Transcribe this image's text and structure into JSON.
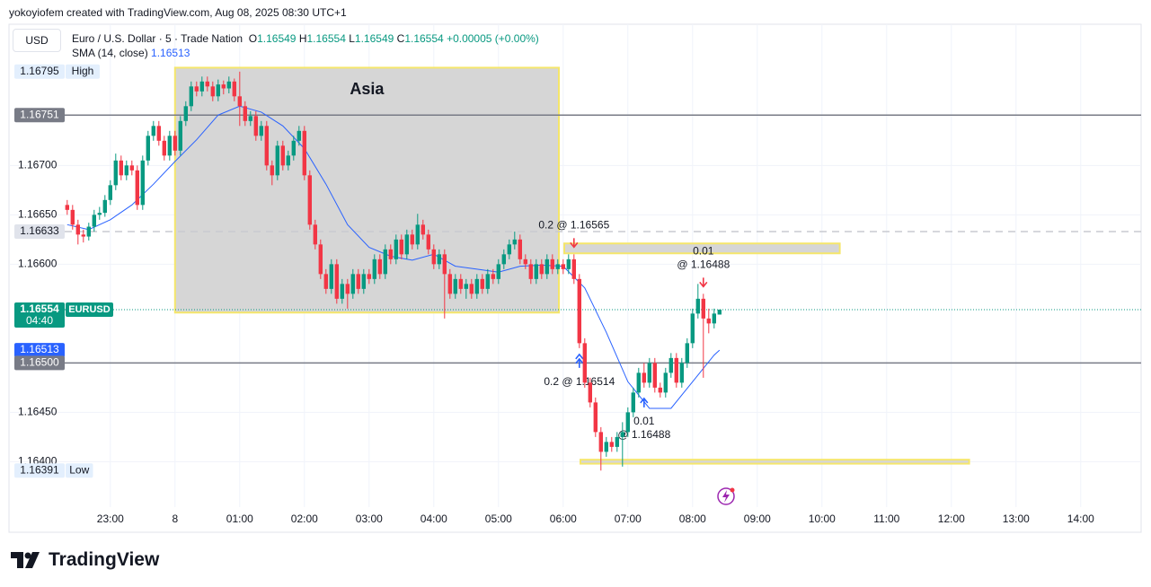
{
  "header": {
    "attribution": "yokoyiofem created with TradingView.com, Aug 08, 2025 08:30 UTC+1",
    "currency": "USD",
    "symbol": "Euro / U.S. Dollar · 5 · Trade Nation",
    "ohlc": [
      {
        "label": "O",
        "value": "1.16549"
      },
      {
        "label": "H",
        "value": "1.16554"
      },
      {
        "label": "L",
        "value": "1.16549"
      },
      {
        "label": "C",
        "value": "1.16554"
      }
    ],
    "change": "+0.00005 (+0.00%)",
    "indicator": "SMA (14, close)",
    "indicator_value": "1.16513"
  },
  "chart_data": {
    "type": "candlestick",
    "up_color": "#089981",
    "down_color": "#f23645",
    "grid": true,
    "xlim": [
      -10.8,
      199.2
    ],
    "ylim": [
      1.16354,
      1.16843
    ],
    "xticks": [
      {
        "value": 8,
        "label": "23:00"
      },
      {
        "value": 20,
        "label": "8"
      },
      {
        "value": 32,
        "label": "01:00"
      },
      {
        "value": 44,
        "label": "02:00"
      },
      {
        "value": 56,
        "label": "03:00"
      },
      {
        "value": 68,
        "label": "04:00"
      },
      {
        "value": 80,
        "label": "05:00"
      },
      {
        "value": 92,
        "label": "06:00"
      },
      {
        "value": 104,
        "label": "07:00"
      },
      {
        "value": 116,
        "label": "08:00"
      },
      {
        "value": 128,
        "label": "09:00"
      },
      {
        "value": 140,
        "label": "10:00"
      },
      {
        "value": 152,
        "label": "11:00"
      },
      {
        "value": 164,
        "label": "12:00"
      },
      {
        "value": 176,
        "label": "13:00"
      },
      {
        "value": 188,
        "label": "14:00"
      }
    ],
    "yticks": [
      {
        "value": 1.164,
        "label": "1.16400"
      },
      {
        "value": 1.1645,
        "label": "1.16450"
      },
      {
        "value": 1.166,
        "label": "1.16600"
      },
      {
        "value": 1.1665,
        "label": "1.16650"
      },
      {
        "value": 1.167,
        "label": "1.16700"
      }
    ],
    "candles": [
      [
        1.1666,
        1.16665,
        1.1665,
        1.16655
      ],
      [
        1.16655,
        1.1666,
        1.16635,
        1.1664
      ],
      [
        1.1664,
        1.16645,
        1.1662,
        1.1663
      ],
      [
        1.1663,
        1.16635,
        1.16622,
        1.16628
      ],
      [
        1.16628,
        1.16642,
        1.16624,
        1.16638
      ],
      [
        1.16638,
        1.16655,
        1.16633,
        1.1665
      ],
      [
        1.1665,
        1.16658,
        1.16645,
        1.16652
      ],
      [
        1.16652,
        1.1667,
        1.16648,
        1.16665
      ],
      [
        1.16665,
        1.16685,
        1.1666,
        1.1668
      ],
      [
        1.1668,
        1.16712,
        1.16675,
        1.16705
      ],
      [
        1.16705,
        1.1671,
        1.16685,
        1.1669
      ],
      [
        1.1669,
        1.16705,
        1.16685,
        1.167
      ],
      [
        1.167,
        1.16705,
        1.1669,
        1.16695
      ],
      [
        1.16695,
        1.167,
        1.16655,
        1.1666
      ],
      [
        1.1666,
        1.1671,
        1.16655,
        1.16705
      ],
      [
        1.16705,
        1.16735,
        1.167,
        1.1673
      ],
      [
        1.1673,
        1.16745,
        1.16725,
        1.1674
      ],
      [
        1.1674,
        1.16745,
        1.1672,
        1.16725
      ],
      [
        1.16725,
        1.1673,
        1.16705,
        1.1671
      ],
      [
        1.1671,
        1.16735,
        1.16705,
        1.1673
      ],
      [
        1.1673,
        1.16735,
        1.1671,
        1.16715
      ],
      [
        1.16715,
        1.1675,
        1.1671,
        1.16745
      ],
      [
        1.16745,
        1.16765,
        1.1674,
        1.1676
      ],
      [
        1.1676,
        1.16785,
        1.16755,
        1.1678
      ],
      [
        1.1678,
        1.16785,
        1.1677,
        1.16775
      ],
      [
        1.16775,
        1.1679,
        1.1677,
        1.16785
      ],
      [
        1.16785,
        1.1679,
        1.16775,
        1.1678
      ],
      [
        1.1678,
        1.16785,
        1.16765,
        1.1677
      ],
      [
        1.1677,
        1.16787,
        1.16765,
        1.16782
      ],
      [
        1.16782,
        1.16786,
        1.16772,
        1.16778
      ],
      [
        1.16778,
        1.1679,
        1.16773,
        1.16785
      ],
      [
        1.16785,
        1.16788,
        1.16765,
        1.1677
      ],
      [
        1.1677,
        1.16795,
        1.1674,
        1.1676
      ],
      [
        1.1676,
        1.16765,
        1.1674,
        1.16745
      ],
      [
        1.16745,
        1.16755,
        1.1674,
        1.1675
      ],
      [
        1.1675,
        1.16755,
        1.16725,
        1.1673
      ],
      [
        1.1673,
        1.16745,
        1.16725,
        1.1674
      ],
      [
        1.1674,
        1.16745,
        1.16695,
        1.167
      ],
      [
        1.167,
        1.16705,
        1.1668,
        1.1669
      ],
      [
        1.1669,
        1.16725,
        1.16685,
        1.1672
      ],
      [
        1.1672,
        1.16725,
        1.16695,
        1.167
      ],
      [
        1.167,
        1.16715,
        1.16695,
        1.1671
      ],
      [
        1.1671,
        1.1673,
        1.16705,
        1.16725
      ],
      [
        1.16725,
        1.1674,
        1.1672,
        1.16735
      ],
      [
        1.16735,
        1.1674,
        1.16685,
        1.1669
      ],
      [
        1.1669,
        1.16695,
        1.16635,
        1.1664
      ],
      [
        1.1664,
        1.16645,
        1.16615,
        1.1662
      ],
      [
        1.1662,
        1.16625,
        1.16585,
        1.1659
      ],
      [
        1.1659,
        1.16595,
        1.1657,
        1.16575
      ],
      [
        1.16575,
        1.16605,
        1.1657,
        1.166
      ],
      [
        1.166,
        1.16605,
        1.1656,
        1.16565
      ],
      [
        1.16565,
        1.16585,
        1.1656,
        1.1658
      ],
      [
        1.1658,
        1.16585,
        1.16555,
        1.1657
      ],
      [
        1.1657,
        1.16595,
        1.16565,
        1.1659
      ],
      [
        1.1659,
        1.16595,
        1.1657,
        1.16575
      ],
      [
        1.16575,
        1.16595,
        1.1657,
        1.1659
      ],
      [
        1.1659,
        1.16595,
        1.1658,
        1.16585
      ],
      [
        1.16585,
        1.1661,
        1.1658,
        1.16605
      ],
      [
        1.16605,
        1.1661,
        1.16585,
        1.1659
      ],
      [
        1.1659,
        1.1662,
        1.16585,
        1.16615
      ],
      [
        1.16615,
        1.1662,
        1.166,
        1.16605
      ],
      [
        1.16605,
        1.1663,
        1.166,
        1.16625
      ],
      [
        1.16625,
        1.1663,
        1.16605,
        1.1661
      ],
      [
        1.1661,
        1.16635,
        1.16605,
        1.1663
      ],
      [
        1.1663,
        1.16635,
        1.16615,
        1.1662
      ],
      [
        1.1662,
        1.16651,
        1.16615,
        1.1664
      ],
      [
        1.1664,
        1.16645,
        1.16625,
        1.1663
      ],
      [
        1.1663,
        1.16635,
        1.1661,
        1.16615
      ],
      [
        1.16615,
        1.1662,
        1.16595,
        1.166
      ],
      [
        1.166,
        1.16615,
        1.16595,
        1.1661
      ],
      [
        1.1661,
        1.16615,
        1.16545,
        1.1659
      ],
      [
        1.1659,
        1.16595,
        1.16565,
        1.1657
      ],
      [
        1.1657,
        1.1659,
        1.16565,
        1.16585
      ],
      [
        1.16585,
        1.1659,
        1.1657,
        1.16575
      ],
      [
        1.16575,
        1.16585,
        1.16565,
        1.1658
      ],
      [
        1.1658,
        1.16585,
        1.16565,
        1.1657
      ],
      [
        1.1657,
        1.1659,
        1.16565,
        1.16585
      ],
      [
        1.16585,
        1.1659,
        1.1657,
        1.16575
      ],
      [
        1.16575,
        1.16595,
        1.1657,
        1.1659
      ],
      [
        1.1659,
        1.16595,
        1.1658,
        1.16585
      ],
      [
        1.16585,
        1.16605,
        1.1658,
        1.166
      ],
      [
        1.166,
        1.16615,
        1.16595,
        1.1661
      ],
      [
        1.1661,
        1.16625,
        1.16605,
        1.1662
      ],
      [
        1.1662,
        1.16633,
        1.16615,
        1.16625
      ],
      [
        1.16625,
        1.1663,
        1.166,
        1.16605
      ],
      [
        1.16605,
        1.1661,
        1.16595,
        1.166
      ],
      [
        1.166,
        1.16605,
        1.1658,
        1.16585
      ],
      [
        1.16585,
        1.16605,
        1.1658,
        1.166
      ],
      [
        1.166,
        1.16605,
        1.16585,
        1.1659
      ],
      [
        1.1659,
        1.1661,
        1.16585,
        1.16605
      ],
      [
        1.16605,
        1.1661,
        1.1659,
        1.16595
      ],
      [
        1.16595,
        1.16605,
        1.1659,
        1.166
      ],
      [
        1.166,
        1.16605,
        1.1659,
        1.16595
      ],
      [
        1.16595,
        1.1661,
        1.1659,
        1.16605
      ],
      [
        1.16605,
        1.1661,
        1.1658,
        1.16585
      ],
      [
        1.16585,
        1.1659,
        1.16515,
        1.1652
      ],
      [
        1.1652,
        1.16525,
        1.16475,
        1.1648
      ],
      [
        1.1648,
        1.16485,
        1.16455,
        1.1646
      ],
      [
        1.1646,
        1.16465,
        1.16425,
        1.1643
      ],
      [
        1.1643,
        1.16435,
        1.16391,
        1.1641
      ],
      [
        1.1641,
        1.16425,
        1.16405,
        1.1642
      ],
      [
        1.1642,
        1.16425,
        1.1641,
        1.16415
      ],
      [
        1.16415,
        1.1643,
        1.1641,
        1.16425
      ],
      [
        1.16425,
        1.1644,
        1.16395,
        1.1643
      ],
      [
        1.1643,
        1.16455,
        1.16425,
        1.1645
      ],
      [
        1.1645,
        1.16475,
        1.16445,
        1.1647
      ],
      [
        1.1647,
        1.16495,
        1.16465,
        1.1649
      ],
      [
        1.1649,
        1.165,
        1.16475,
        1.1648
      ],
      [
        1.1648,
        1.16505,
        1.16475,
        1.165
      ],
      [
        1.165,
        1.16505,
        1.1647,
        1.16475
      ],
      [
        1.16475,
        1.1648,
        1.16465,
        1.1647
      ],
      [
        1.1647,
        1.16495,
        1.16465,
        1.1649
      ],
      [
        1.1649,
        1.1651,
        1.16485,
        1.16505
      ],
      [
        1.16505,
        1.1651,
        1.16475,
        1.1648
      ],
      [
        1.1648,
        1.16505,
        1.16475,
        1.165
      ],
      [
        1.165,
        1.16525,
        1.16495,
        1.1652
      ],
      [
        1.1652,
        1.16555,
        1.16515,
        1.1655
      ],
      [
        1.1655,
        1.1658,
        1.16545,
        1.16565
      ],
      [
        1.16565,
        1.1657,
        1.16485,
        1.16545
      ],
      [
        1.16545,
        1.16555,
        1.1653,
        1.1654
      ],
      [
        1.1654,
        1.16555,
        1.16535,
        1.1655
      ],
      [
        1.16549,
        1.16554,
        1.16549,
        1.16554
      ]
    ],
    "sma": {
      "color": "#2962ff",
      "x": [
        0,
        4,
        8,
        12,
        16,
        20,
        24,
        28,
        32,
        36,
        40,
        44,
        48,
        52,
        56,
        60,
        64,
        68,
        72,
        76,
        80,
        84,
        88,
        92,
        96,
        100,
        104,
        108,
        112,
        116,
        120,
        121
      ],
      "values": [
        1.1664,
        1.16635,
        1.16645,
        1.1666,
        1.16681,
        1.16704,
        1.16726,
        1.16751,
        1.1676,
        1.16754,
        1.1674,
        1.16717,
        1.16681,
        1.1664,
        1.16617,
        1.16608,
        1.16604,
        1.1661,
        1.16598,
        1.16595,
        1.16592,
        1.16598,
        1.16599,
        1.16598,
        1.16576,
        1.16531,
        1.16481,
        1.16454,
        1.16454,
        1.16481,
        1.16508,
        1.16513
      ]
    },
    "levels": [
      {
        "value": 1.16795,
        "label": "1.16795",
        "tag": "High",
        "line": "none",
        "bg": "#e3effd",
        "fg": "#131722"
      },
      {
        "value": 1.16751,
        "label": "1.16751",
        "line": "solid",
        "bg": "#787b86",
        "fg": "#ffffff"
      },
      {
        "value": 1.16633,
        "label": "1.16633",
        "line": "dashed",
        "bg": "#e0e3eb",
        "fg": "#131722"
      },
      {
        "value": 1.16554,
        "label": "1.16554",
        "tag": "EURUSD",
        "sub": "04:40",
        "line": "dotted",
        "bg": "#089981",
        "fg": "#ffffff"
      },
      {
        "value": 1.16513,
        "label": "1.16513",
        "line": "none",
        "bg": "#2962ff",
        "fg": "#ffffff"
      },
      {
        "value": 1.165,
        "label": "1.16500",
        "line": "solid",
        "bg": "#787b86",
        "fg": "#ffffff"
      },
      {
        "value": 1.16391,
        "label": "1.16391",
        "tag": "Low",
        "line": "none",
        "bg": "#e3effd",
        "fg": "#131722"
      }
    ],
    "drawings": [
      {
        "x0": 20,
        "x1": 91.2,
        "y0": 1.16551,
        "y1": 1.16799,
        "fill": "#d6d6d6",
        "border": "#f5e66b",
        "label": "Asia"
      },
      {
        "x0": 92.2,
        "x1": 143.3,
        "y0": 1.16611,
        "y1": 1.16621,
        "fill": "#d6d6d6",
        "border": "#f5e66b"
      },
      {
        "x0": 95.2,
        "x1": 167.3,
        "y0": 1.16398,
        "y1": 1.16402,
        "fill": "#d6d6d6",
        "border": "#f5e66b"
      }
    ],
    "trades": [
      {
        "bar": 94,
        "side": "sell",
        "lines": [
          "0.2 @ 1.16565"
        ]
      },
      {
        "bar": 95,
        "side": "buy",
        "double": true,
        "lines": [
          "0.2 @ 1.16514"
        ]
      },
      {
        "bar": 107,
        "side": "buy",
        "lines": [
          "0.01",
          "@ 1.16488"
        ]
      },
      {
        "bar": 118,
        "side": "sell",
        "lines": [
          "0.01",
          "@ 1.16488"
        ]
      }
    ]
  },
  "footer": {
    "brand": "TradingView"
  }
}
